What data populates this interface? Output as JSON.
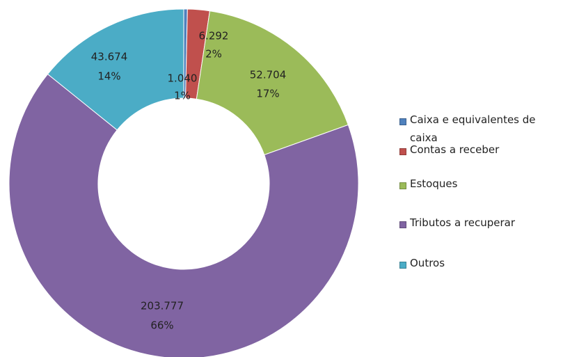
{
  "chart_data": {
    "type": "donut",
    "categories": [
      "Caixa e equivalentes de caixa",
      "Contas a receber",
      "Estoques",
      "Tributos a recuperar",
      "Outros"
    ],
    "values": [
      1040,
      6292,
      52704,
      203777,
      43674
    ],
    "value_labels": [
      "1.040",
      "6.292",
      "52.704",
      "203.777",
      "43.674"
    ],
    "percent_labels": [
      "1%",
      "2%",
      "17%",
      "66%",
      "14%"
    ],
    "colors": [
      "#4f81bd",
      "#c0504d",
      "#9bbb59",
      "#8064a2",
      "#4bacc6"
    ],
    "legend": "right"
  }
}
